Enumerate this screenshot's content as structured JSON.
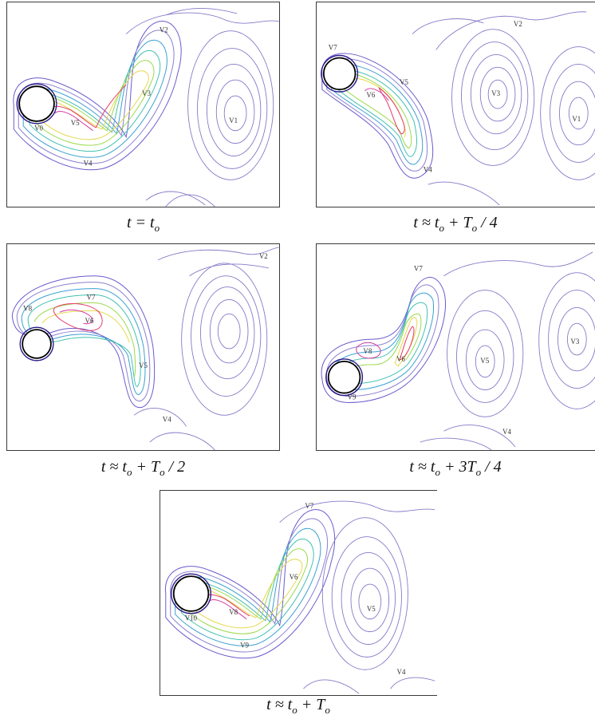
{
  "panels": [
    {
      "caption": {
        "lhs": "t",
        "rel": "=",
        "t": "t",
        "o": "o",
        "plus": "",
        "T": "",
        "To": "",
        "rest": ""
      },
      "labels": [
        "V0",
        "V5",
        "V4",
        "V3",
        "V2",
        "V1"
      ]
    },
    {
      "caption": {
        "lhs": "t",
        "rel": "≈",
        "t": "t",
        "o": "o",
        "plus": "+",
        "T": "T",
        "To": "o",
        "rest": "/ 4"
      },
      "labels": [
        "V7",
        "V6",
        "V5",
        "V4",
        "V3",
        "V2",
        "V1"
      ]
    },
    {
      "caption": {
        "lhs": "t",
        "rel": "≈",
        "t": "t",
        "o": "o",
        "plus": "+",
        "T": "T",
        "To": "o",
        "rest": "/ 2"
      },
      "labels": [
        "V8",
        "V7",
        "V6",
        "V5",
        "V4",
        "V2"
      ]
    },
    {
      "caption": {
        "lhs": "t",
        "rel": "≈",
        "t": "t",
        "o": "o",
        "plus": "+",
        "T": "3T",
        "To": "o",
        "rest": "/ 4"
      },
      "labels": [
        "V9",
        "V8",
        "V7",
        "V6",
        "V5",
        "V4",
        "V3"
      ]
    },
    {
      "caption": {
        "lhs": "t",
        "rel": "≈",
        "t": "t",
        "o": "o",
        "plus": "+",
        "T": "T",
        "To": "o",
        "rest": ""
      },
      "labels": [
        "V10",
        "V9",
        "V8",
        "V7",
        "V6",
        "V5",
        "V4"
      ]
    }
  ]
}
